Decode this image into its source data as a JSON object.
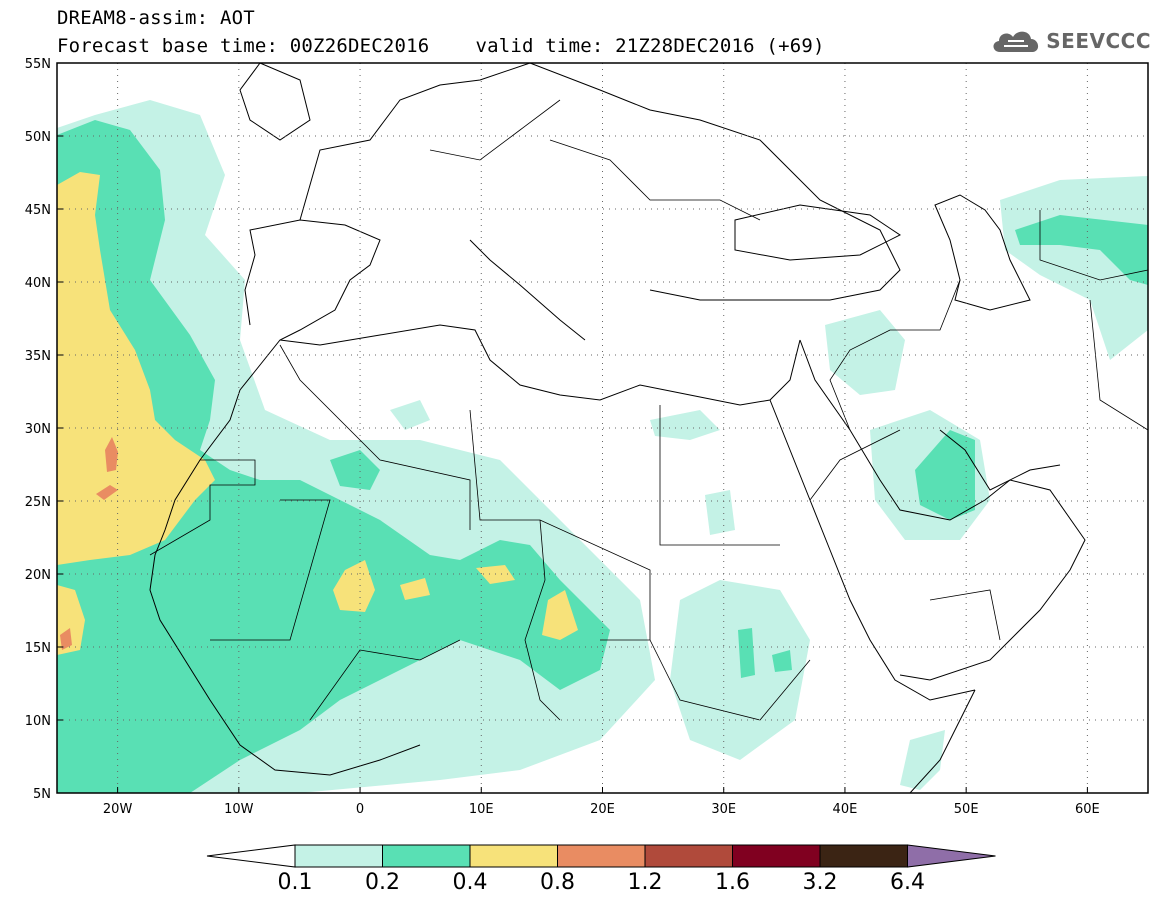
{
  "title": {
    "line1": "DREAM8-assim: AOT",
    "base_time": "Forecast base time: 00Z26DEC2016",
    "valid_time": "valid time: 21Z28DEC2016 (+69)"
  },
  "logo": {
    "text": "SEEVCCC",
    "icon": "cloud-icon"
  },
  "map": {
    "lon_range": [
      -25,
      65
    ],
    "lat_range": [
      5,
      55
    ],
    "lon_ticks": [
      {
        "value": -20,
        "label": "20W"
      },
      {
        "value": -10,
        "label": "10W"
      },
      {
        "value": 0,
        "label": "0"
      },
      {
        "value": 10,
        "label": "10E"
      },
      {
        "value": 20,
        "label": "20E"
      },
      {
        "value": 30,
        "label": "30E"
      },
      {
        "value": 40,
        "label": "40E"
      },
      {
        "value": 50,
        "label": "50E"
      },
      {
        "value": 60,
        "label": "60E"
      }
    ],
    "lat_ticks": [
      {
        "value": 55,
        "label": "55N"
      },
      {
        "value": 50,
        "label": "50N"
      },
      {
        "value": 45,
        "label": "45N"
      },
      {
        "value": 40,
        "label": "40N"
      },
      {
        "value": 35,
        "label": "35N"
      },
      {
        "value": 30,
        "label": "30N"
      },
      {
        "value": 25,
        "label": "25N"
      },
      {
        "value": 20,
        "label": "20N"
      },
      {
        "value": 15,
        "label": "15N"
      },
      {
        "value": 10,
        "label": "10N"
      },
      {
        "value": 5,
        "label": "5N"
      }
    ],
    "grid": "dotted"
  },
  "colorbar": {
    "colors": [
      "#ffffff",
      "#c4f2e6",
      "#59e0b4",
      "#f7e27a",
      "#e98c62",
      "#b04a3b",
      "#800020",
      "#3b2414",
      "#8f6ea8"
    ],
    "labels": [
      "0.1",
      "0.2",
      "0.4",
      "0.8",
      "1.2",
      "1.6",
      "3.2",
      "6.4"
    ]
  }
}
